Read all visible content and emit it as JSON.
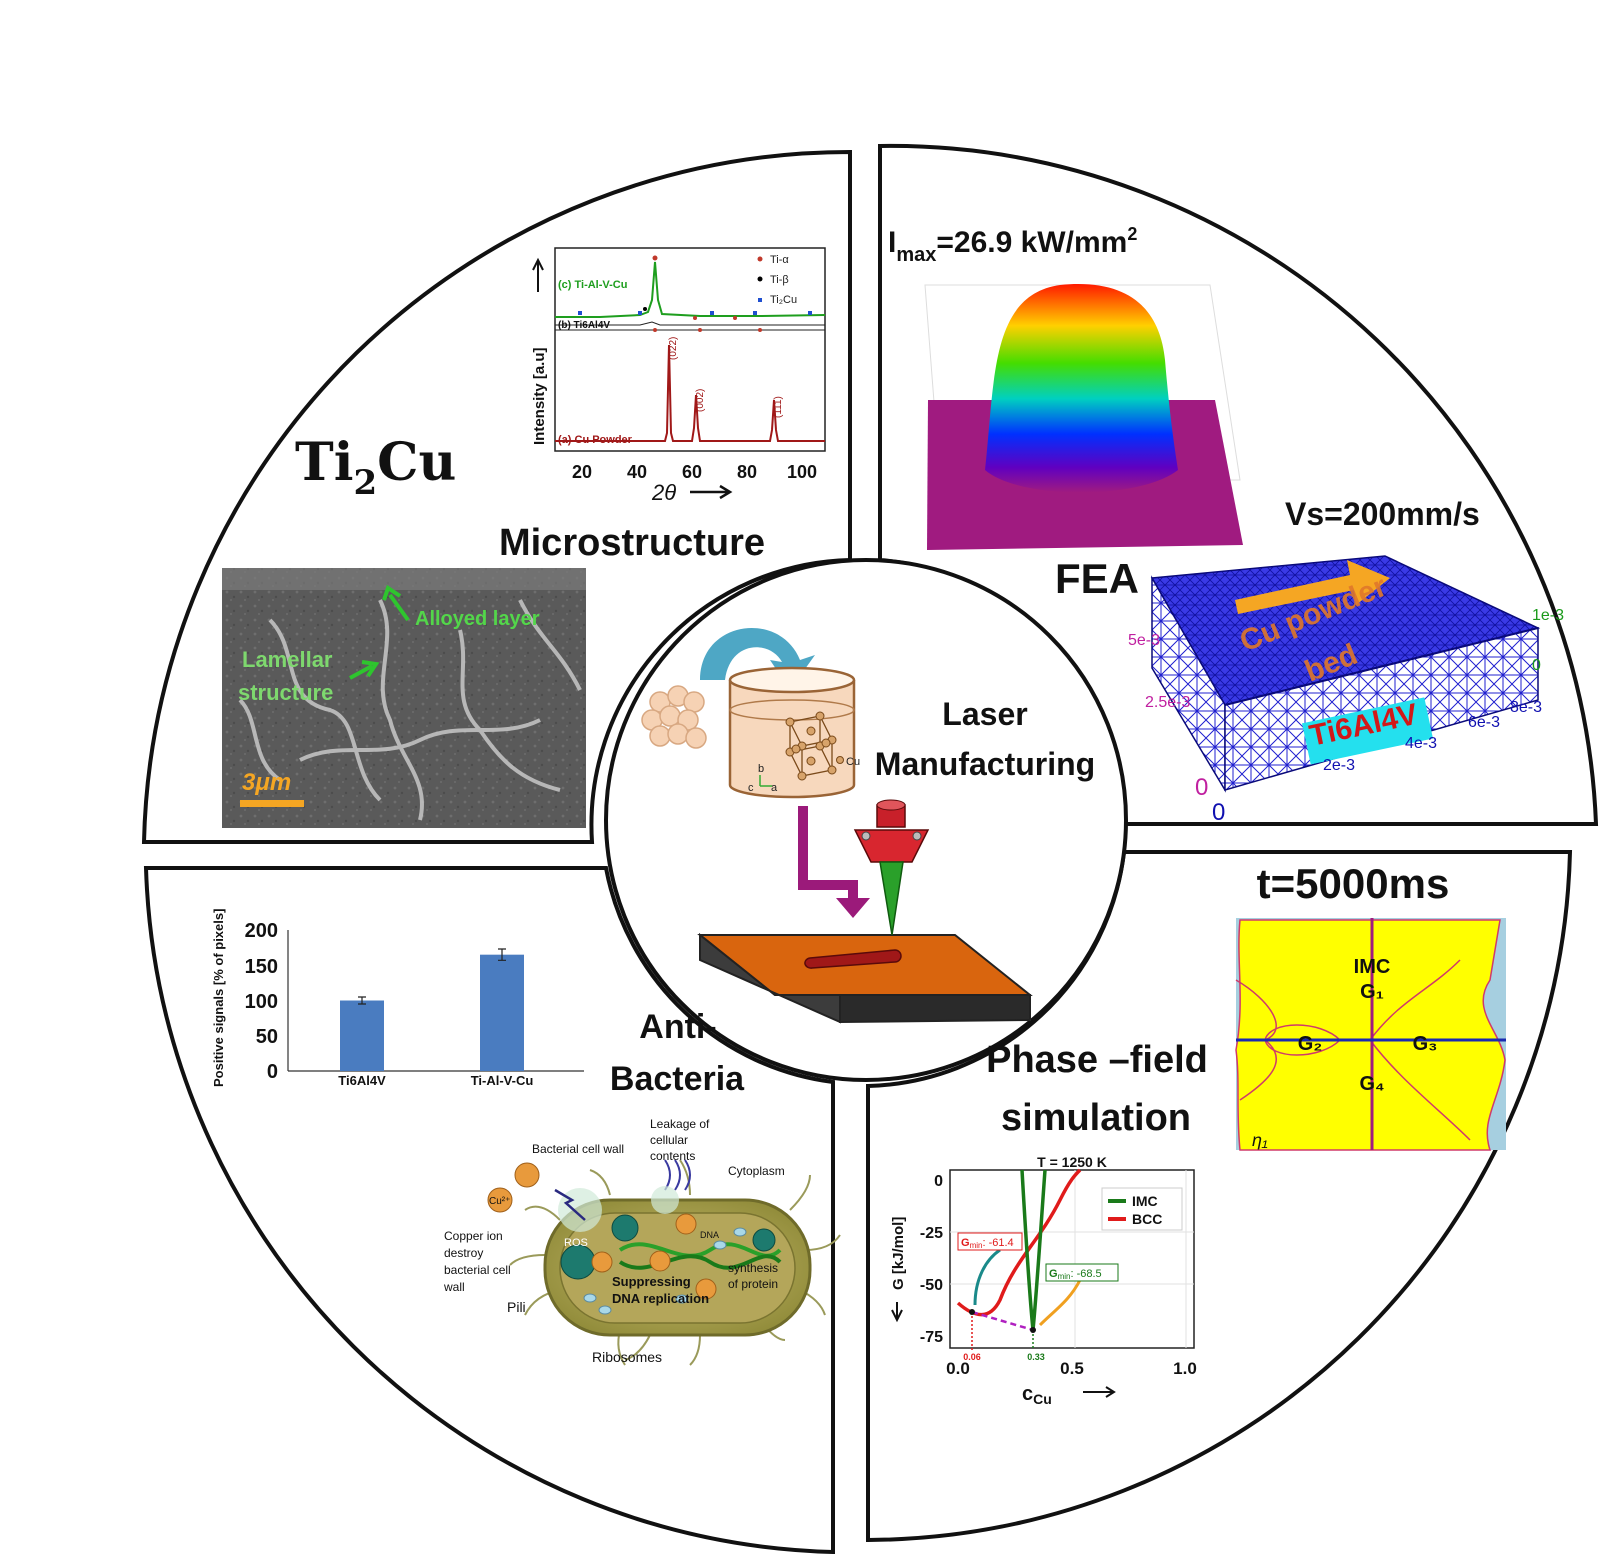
{
  "center": {
    "line1": "Laser",
    "line2": "Manufacturing",
    "cu_label": "Cu",
    "axis_b": "b",
    "axis_a": "a",
    "axis_c": "c"
  },
  "microstructure": {
    "formula_main": "Ti",
    "formula_sub": "2",
    "formula_end": "Cu",
    "heading": "Microstructure",
    "sem_labels": {
      "alloyed": "Alloyed layer",
      "lamellar1": "Lamellar",
      "lamellar2": "structure",
      "scale": "3μm"
    },
    "xrd": {
      "ylabel": "Intensity [a.u]",
      "xlabel": "2θ",
      "xticks": [
        "20",
        "40",
        "60",
        "80",
        "100"
      ],
      "curve_c": "(c) Ti-Al-V-Cu",
      "curve_b": "(b) Ti6Al4V",
      "curve_a": "(a) Cu Powder",
      "peaks": [
        "(022)",
        "(002)",
        "(111)"
      ],
      "legend": [
        "Ti-α",
        "Ti-β",
        "Ti₂Cu"
      ],
      "colors": {
        "c": "#1e9e1e",
        "a": "#a01818",
        "legend_a": "#c0392b",
        "legend_b": "#000000",
        "legend_c": "#1f4fd0"
      }
    }
  },
  "fea": {
    "imax_main": "I",
    "imax_sub": "max",
    "imax_val": "=26.9 kW/mm",
    "imax_sup": "2",
    "vs": "Vs=200mm/s",
    "heading": "FEA",
    "bed_label1": "Cu powder",
    "bed_label2": "bed",
    "substrate_label": "Ti6Al4V",
    "axis_left": [
      "5e-3",
      "2.5e-3",
      "0"
    ],
    "axis_front": [
      "0",
      "2e-3",
      "4e-3",
      "6e-3",
      "8e-3"
    ],
    "axis_right": [
      "1e-3",
      "0"
    ]
  },
  "antibacteria": {
    "heading1": "Anti-",
    "heading2": "Bacteria",
    "chart_data": {
      "type": "bar",
      "categories": [
        "Ti6Al4V",
        "Ti-Al-V-Cu"
      ],
      "values": [
        100,
        165
      ],
      "errors": [
        5,
        8
      ],
      "ylabel": "Positive signals [% of pixels]",
      "yticks": [
        "200",
        "150",
        "100",
        "50",
        "0"
      ],
      "ylim": [
        0,
        200
      ],
      "color": "#4a7cc0"
    },
    "cell_labels": {
      "cell_wall": "Bacterial cell wall",
      "leakage1": "Leakage of",
      "leakage2": "cellular",
      "leakage3": "contents",
      "cytoplasm": "Cytoplasm",
      "copper1": "Copper ion",
      "copper2": "destroy",
      "copper3": "bacterial cell",
      "copper4": "wall",
      "pili": "Pili",
      "ribosomes": "Ribosomes",
      "suppress1": "Suppressing",
      "suppress2": "DNA replication",
      "synth1": "synthesis",
      "synth2": "of protein",
      "dna": "DNA",
      "ros": "ROS",
      "cu": "Cu²⁺"
    }
  },
  "phasefield": {
    "time": "t=5000ms",
    "heading1": "Phase –field",
    "heading2": "simulation",
    "grains": {
      "imc": "IMC",
      "g1": "G₁",
      "g2": "G₂",
      "g3": "G₃",
      "g4": "G₄",
      "eta": "η₁"
    },
    "gplot": {
      "title": "T = 1250 K",
      "ylabel": "G [kJ/mol]",
      "xlabel": "c",
      "xlabel_sub": "Cu",
      "yticks": [
        "0",
        "-25",
        "-50",
        "-75"
      ],
      "xticks": [
        "0.0",
        "0.5",
        "1.0"
      ],
      "legend": [
        "IMC",
        "BCC"
      ],
      "gmin_bcc_label": "G",
      "gmin_bcc_sub": "min",
      "gmin_bcc_val": ": -61.4",
      "gmin_imc_val": ": -68.5",
      "mark_bcc": "0.06",
      "mark_imc": "0.33",
      "colors": {
        "imc": "#1a7a1a",
        "bcc": "#e01b1b"
      }
    }
  }
}
